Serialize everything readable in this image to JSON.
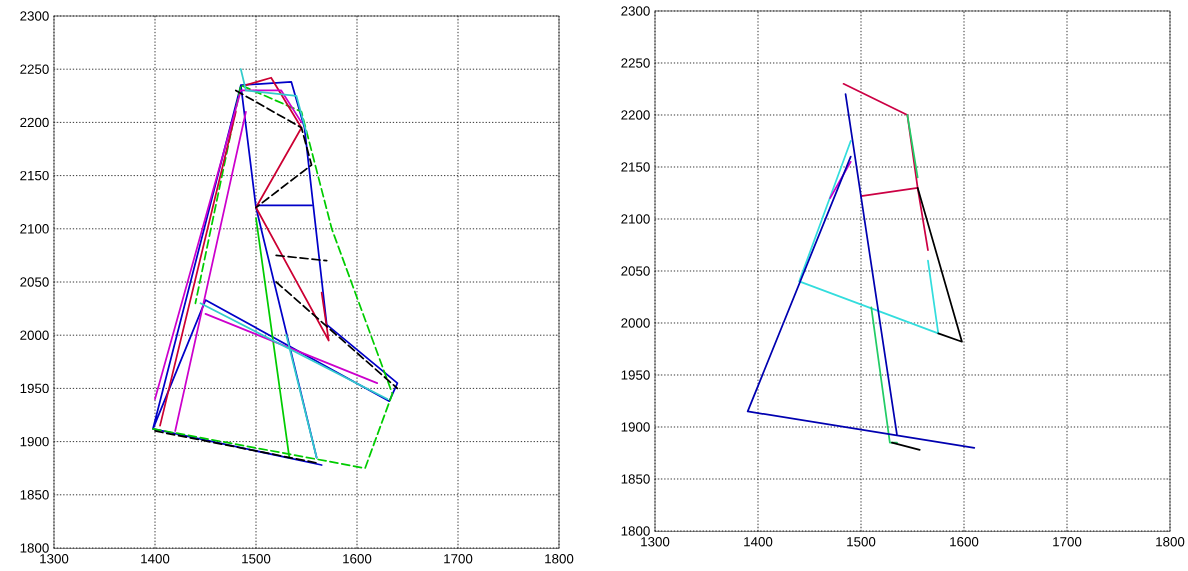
{
  "chart_data": [
    {
      "type": "line",
      "xlim": [
        1300,
        1800
      ],
      "ylim": [
        1800,
        2300
      ],
      "xticks": [
        1300,
        1400,
        1500,
        1600,
        1700,
        1800
      ],
      "yticks": [
        1800,
        1850,
        1900,
        1950,
        2000,
        2050,
        2100,
        2150,
        2200,
        2250,
        2300
      ],
      "grid": true,
      "series": [
        {
          "color": "#0000c8",
          "line_style": "solid",
          "x": [
            1398,
            1485,
            1535,
            1548,
            1570,
            1640,
            1632,
            1450,
            1398,
            1565,
            null,
            1485,
            1500,
            1560,
            null,
            1500,
            1555
          ],
          "values": [
            1912,
            2235,
            2238,
            2195,
            2010,
            1955,
            1938,
            2033,
            1912,
            1878,
            null,
            2235,
            2120,
            1885,
            null,
            2122,
            2122
          ]
        },
        {
          "color": "#00cc00",
          "line_style": "dashed",
          "x": [
            1398,
            1608,
            1635,
            1575,
            1545,
            1485,
            1440
          ],
          "values": [
            1912,
            1875,
            1945,
            2100,
            2210,
            2235,
            2030
          ]
        },
        {
          "color": "#00cc00",
          "line_style": "solid",
          "x": [
            1500,
            1533
          ],
          "values": [
            2110,
            1885
          ]
        },
        {
          "color": "#cc0033",
          "line_style": "solid",
          "x": [
            1405,
            1480,
            null,
            1490,
            1515,
            1545,
            1500,
            1572,
            1565
          ],
          "values": [
            1915,
            2210,
            null,
            2235,
            2242,
            2195,
            2120,
            1995,
            2040
          ]
        },
        {
          "color": "#cc00cc",
          "line_style": "solid",
          "x": [
            1400,
            1485,
            1525,
            1545,
            null,
            1420,
            1490,
            null,
            1450,
            1620
          ],
          "values": [
            1940,
            2230,
            2230,
            2200,
            null,
            1910,
            2210,
            null,
            2020,
            1955
          ]
        },
        {
          "color": "#33cccc",
          "line_style": "solid",
          "x": [
            1485,
            1490,
            1540,
            1550,
            null,
            1445,
            1630,
            null,
            1530,
            1560
          ],
          "values": [
            2250,
            2230,
            2225,
            2190,
            null,
            2030,
            1940,
            null,
            2000,
            1885
          ]
        },
        {
          "color": "#000000",
          "line_style": "dashed",
          "x": [
            1480,
            1545,
            1555,
            1500,
            null,
            1400,
            1560,
            null,
            1520,
            1570,
            null,
            1520,
            1640
          ],
          "values": [
            2230,
            2195,
            2160,
            2120,
            null,
            1910,
            1880,
            null,
            2075,
            2070,
            null,
            2050,
            1950
          ]
        }
      ]
    },
    {
      "type": "line",
      "xlim": [
        1300,
        1800
      ],
      "ylim": [
        1800,
        2300
      ],
      "xticks": [
        1300,
        1400,
        1500,
        1600,
        1700,
        1800
      ],
      "yticks": [
        1800,
        1850,
        1900,
        1950,
        2000,
        2050,
        2100,
        2150,
        2200,
        2250,
        2300
      ],
      "grid": true,
      "series": [
        {
          "color": "#33dddd",
          "line_style": "solid",
          "x": [
            1490,
            1440,
            1575,
            1565
          ],
          "values": [
            2175,
            2040,
            1990,
            2060
          ]
        },
        {
          "color": "#cc0044",
          "line_style": "solid",
          "x": [
            1483,
            1545,
            1555,
            1500,
            null,
            1555,
            1565
          ],
          "values": [
            2230,
            2200,
            2130,
            2122,
            null,
            2130,
            2070
          ]
        },
        {
          "color": "#22cc66",
          "line_style": "solid",
          "x": [
            1545,
            1555,
            null,
            1510,
            1528,
            1535
          ],
          "values": [
            2200,
            2140,
            null,
            2015,
            1885,
            1885
          ]
        },
        {
          "color": "#000000",
          "line_style": "solid",
          "x": [
            1555,
            1598,
            1575,
            null,
            1530,
            1557
          ],
          "values": [
            2130,
            1982,
            1990,
            null,
            1885,
            1878
          ]
        },
        {
          "color": "#cc00cc",
          "line_style": "solid",
          "x": [
            1490,
            1470
          ],
          "values": [
            2155,
            2120
          ]
        },
        {
          "color": "#0000b0",
          "line_style": "solid",
          "x": [
            1485,
            1535,
            null,
            1490,
            1390,
            1610
          ],
          "values": [
            2220,
            1892,
            null,
            2160,
            1915,
            1880
          ]
        }
      ]
    }
  ]
}
